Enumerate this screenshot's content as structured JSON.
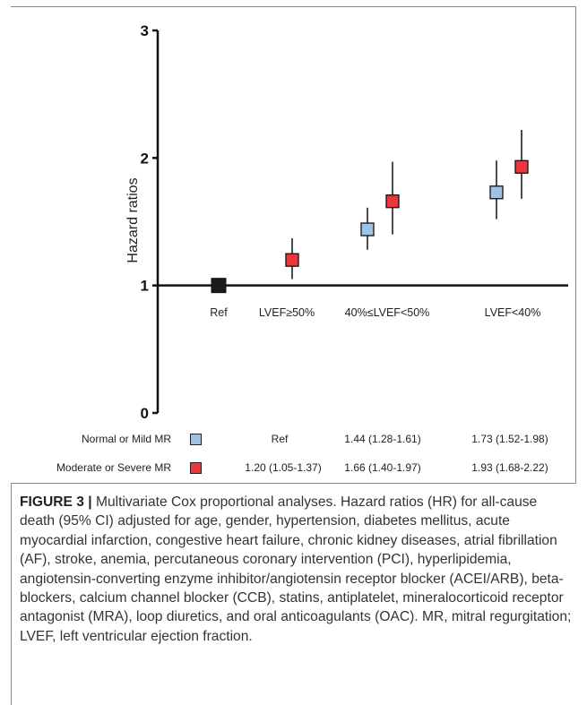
{
  "chart_data": {
    "type": "scatter",
    "ylabel": "Hazard ratios",
    "ylim": [
      0,
      3
    ],
    "y_ticks": [
      "0",
      "1",
      "2",
      "3"
    ],
    "reference_line": 1,
    "categories": [
      "Ref",
      "LVEF≥50%",
      "40%≤LVEF<50%",
      "LVEF<40%"
    ],
    "reference_point": {
      "category": "Ref",
      "hr": 1.0,
      "color": "#1a1a1a"
    },
    "series": [
      {
        "name": "Normal or Mild MR",
        "color": "#9cc3e6",
        "points": [
          {
            "category": "40%≤LVEF<50%",
            "hr": 1.44,
            "lo": 1.28,
            "hi": 1.61
          },
          {
            "category": "LVEF<40%",
            "hr": 1.73,
            "lo": 1.52,
            "hi": 1.98
          }
        ]
      },
      {
        "name": "Moderate or Severe MR",
        "color": "#e8383d",
        "points": [
          {
            "category": "LVEF≥50%",
            "hr": 1.2,
            "lo": 1.05,
            "hi": 1.37
          },
          {
            "category": "40%≤LVEF<50%",
            "hr": 1.66,
            "lo": 1.4,
            "hi": 1.97
          },
          {
            "category": "LVEF<40%",
            "hr": 1.93,
            "lo": 1.68,
            "hi": 2.22
          }
        ]
      }
    ]
  },
  "table": {
    "rows": [
      {
        "label": "Normal or Mild MR",
        "color": "#9cc3e6",
        "cells": [
          "",
          "Ref",
          "1.44 (1.28-1.61)",
          "1.73 (1.52-1.98)"
        ]
      },
      {
        "label": "Moderate or Severe MR",
        "color": "#e8383d",
        "cells": [
          "1.20 (1.05-1.37)",
          "",
          "1.66 (1.40-1.97)",
          "1.93 (1.68-2.22)"
        ]
      }
    ]
  },
  "caption": {
    "label": "FIGURE 3 |",
    "text": " Multivariate Cox proportional analyses. Hazard ratios (HR) for all-cause death (95% CI) adjusted for age, gender, hypertension, diabetes mellitus, acute myocardial infarction, congestive heart failure, chronic kidney diseases, atrial fibrillation (AF), stroke, anemia, percutaneous coronary intervention (PCI), hyperlipidemia, angiotensin-converting enzyme inhibitor/angiotensin receptor blocker (ACEI/ARB), beta-blockers, calcium channel blocker (CCB), statins, antiplatelet, mineralocorticoid receptor antagonist (MRA), loop diuretics, and oral anticoagulants (OAC). MR, mitral regurgitation; LVEF, left ventricular ejection fraction."
  }
}
